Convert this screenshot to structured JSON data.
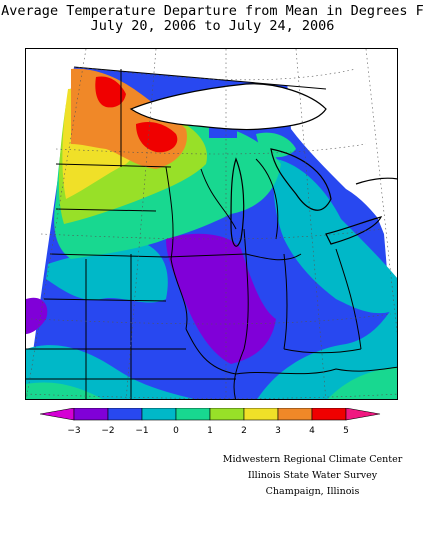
{
  "title": {
    "line1": "Average Temperature Departure from Mean in Degrees F",
    "line2": "July 20, 2006 to July 24, 2006"
  },
  "legend": {
    "ticks": [
      "-3",
      "-2",
      "-1",
      "0",
      "1",
      "2",
      "3",
      "4",
      "5"
    ],
    "colors": [
      "#d400d4",
      "#8000d8",
      "#2848f0",
      "#00b8c8",
      "#18d890",
      "#98e028",
      "#f0e028",
      "#f08828",
      "#f00000",
      "#f01880"
    ]
  },
  "credits": {
    "line1": "Midwestern Regional Climate Center",
    "line2": "Illinois State Water Survey",
    "line3": "Champaign, Illinois"
  }
}
